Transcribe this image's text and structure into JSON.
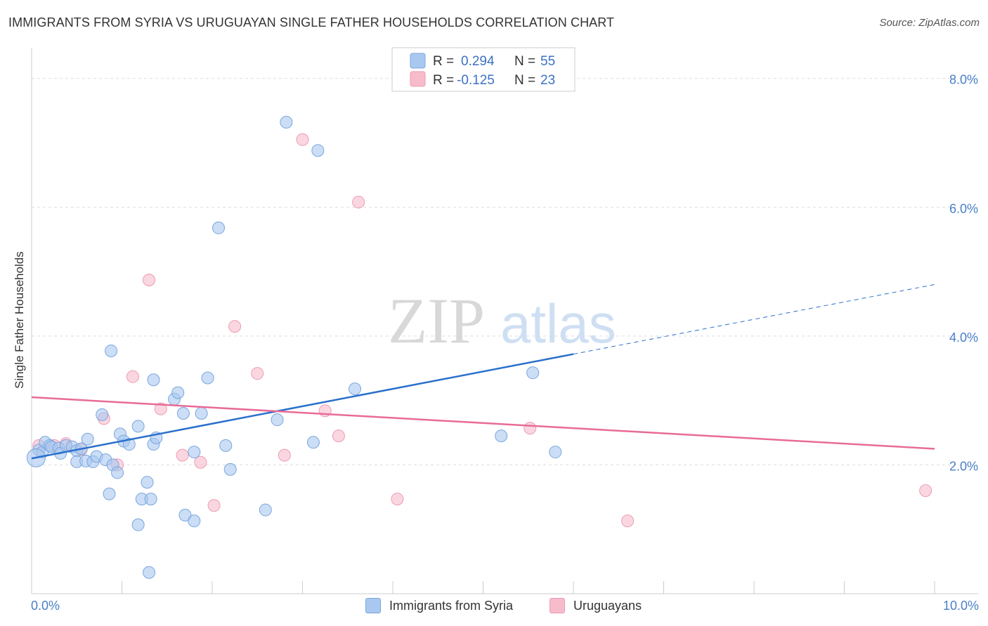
{
  "header": {
    "title": "IMMIGRANTS FROM SYRIA VS URUGUAYAN SINGLE FATHER HOUSEHOLDS CORRELATION CHART",
    "source": "Source: ZipAtlas.com"
  },
  "watermark": {
    "zip": "ZIP",
    "atlas": "atlas"
  },
  "colors": {
    "syria_fill": "#a9c8f0",
    "syria_stroke": "#7aa6dd",
    "syria_line": "#2a6fcc",
    "uru_fill": "#f7bccb",
    "uru_stroke": "#ee9ab2",
    "uru_line": "#e86b98",
    "grid": "#dddddd",
    "tick_text": "#4a7fc8"
  },
  "legend": {
    "items": [
      {
        "r_label": "R =",
        "r_value": "0.294",
        "n_label": "N =",
        "n_value": "55"
      },
      {
        "r_label": "R =",
        "r_value": "-0.125",
        "n_label": "N =",
        "n_value": "23"
      }
    ]
  },
  "bottom_legend": {
    "items": [
      {
        "label": "Immigrants from Syria"
      },
      {
        "label": "Uruguayans"
      }
    ]
  },
  "chart_data": {
    "type": "scatter",
    "title": "IMMIGRANTS FROM SYRIA VS URUGUAYAN SINGLE FATHER HOUSEHOLDS CORRELATION CHART",
    "xlabel": "",
    "ylabel": "Single Father Households",
    "xlim": [
      0,
      10
    ],
    "ylim": [
      0,
      8.4
    ],
    "x_tick_labels": [
      "0.0%",
      "10.0%"
    ],
    "y_ticks": [
      2,
      4,
      6,
      8
    ],
    "y_tick_labels": [
      "2.0%",
      "4.0%",
      "6.0%",
      "8.0%"
    ],
    "grid": true,
    "legend_position": "top-center",
    "series": [
      {
        "name": "Immigrants from Syria",
        "r": 0.294,
        "n": 55,
        "trend": {
          "x0": 0.0,
          "y0": 2.1,
          "x_solid_end": 6.0,
          "x_end": 10.0,
          "y_end": 4.8
        },
        "points": [
          [
            0.08,
            2.23
          ],
          [
            0.12,
            2.2
          ],
          [
            0.15,
            2.35
          ],
          [
            0.2,
            2.3
          ],
          [
            0.22,
            2.28
          ],
          [
            0.3,
            2.26
          ],
          [
            0.32,
            2.18
          ],
          [
            0.38,
            2.3
          ],
          [
            0.45,
            2.28
          ],
          [
            0.5,
            2.22
          ],
          [
            0.55,
            2.25
          ],
          [
            0.5,
            2.05
          ],
          [
            0.6,
            2.06
          ],
          [
            0.62,
            2.4
          ],
          [
            0.68,
            2.05
          ],
          [
            0.72,
            2.13
          ],
          [
            0.78,
            2.78
          ],
          [
            0.82,
            2.08
          ],
          [
            0.88,
            3.77
          ],
          [
            0.9,
            2.0
          ],
          [
            0.95,
            1.88
          ],
          [
            0.98,
            2.48
          ],
          [
            1.02,
            2.37
          ],
          [
            1.08,
            2.32
          ],
          [
            1.18,
            2.6
          ],
          [
            1.28,
            1.73
          ],
          [
            1.22,
            1.47
          ],
          [
            1.35,
            3.32
          ],
          [
            1.35,
            2.32
          ],
          [
            1.38,
            2.42
          ],
          [
            1.58,
            3.02
          ],
          [
            1.62,
            3.12
          ],
          [
            1.68,
            2.8
          ],
          [
            1.8,
            2.2
          ],
          [
            1.88,
            2.8
          ],
          [
            1.95,
            3.35
          ],
          [
            2.07,
            5.68
          ],
          [
            2.15,
            2.3
          ],
          [
            2.2,
            1.93
          ],
          [
            2.59,
            1.3
          ],
          [
            2.72,
            2.7
          ],
          [
            2.82,
            7.32
          ],
          [
            3.12,
            2.35
          ],
          [
            3.17,
            6.88
          ],
          [
            3.58,
            3.18
          ],
          [
            5.2,
            2.45
          ],
          [
            5.55,
            3.43
          ],
          [
            5.8,
            2.2
          ],
          [
            0.86,
            1.55
          ],
          [
            1.32,
            1.47
          ],
          [
            1.18,
            1.07
          ],
          [
            1.7,
            1.22
          ],
          [
            1.8,
            1.13
          ],
          [
            1.3,
            0.33
          ],
          [
            0.05,
            2.11
          ]
        ]
      },
      {
        "name": "Uruguayans",
        "r": -0.125,
        "n": 23,
        "trend": {
          "x0": 0.0,
          "y0": 3.05,
          "x_end": 10.0,
          "y_end": 2.25
        },
        "points": [
          [
            0.08,
            2.3
          ],
          [
            0.25,
            2.3
          ],
          [
            0.38,
            2.33
          ],
          [
            0.55,
            2.24
          ],
          [
            0.8,
            2.72
          ],
          [
            0.95,
            2.0
          ],
          [
            1.12,
            3.37
          ],
          [
            1.3,
            4.87
          ],
          [
            1.43,
            2.87
          ],
          [
            1.67,
            2.15
          ],
          [
            1.87,
            2.04
          ],
          [
            2.02,
            1.37
          ],
          [
            2.25,
            4.15
          ],
          [
            2.5,
            3.42
          ],
          [
            2.8,
            2.15
          ],
          [
            3.0,
            7.05
          ],
          [
            3.25,
            2.84
          ],
          [
            3.4,
            2.45
          ],
          [
            3.62,
            6.08
          ],
          [
            4.05,
            1.47
          ],
          [
            5.52,
            2.57
          ],
          [
            6.6,
            1.13
          ],
          [
            9.9,
            1.6
          ]
        ]
      }
    ]
  }
}
